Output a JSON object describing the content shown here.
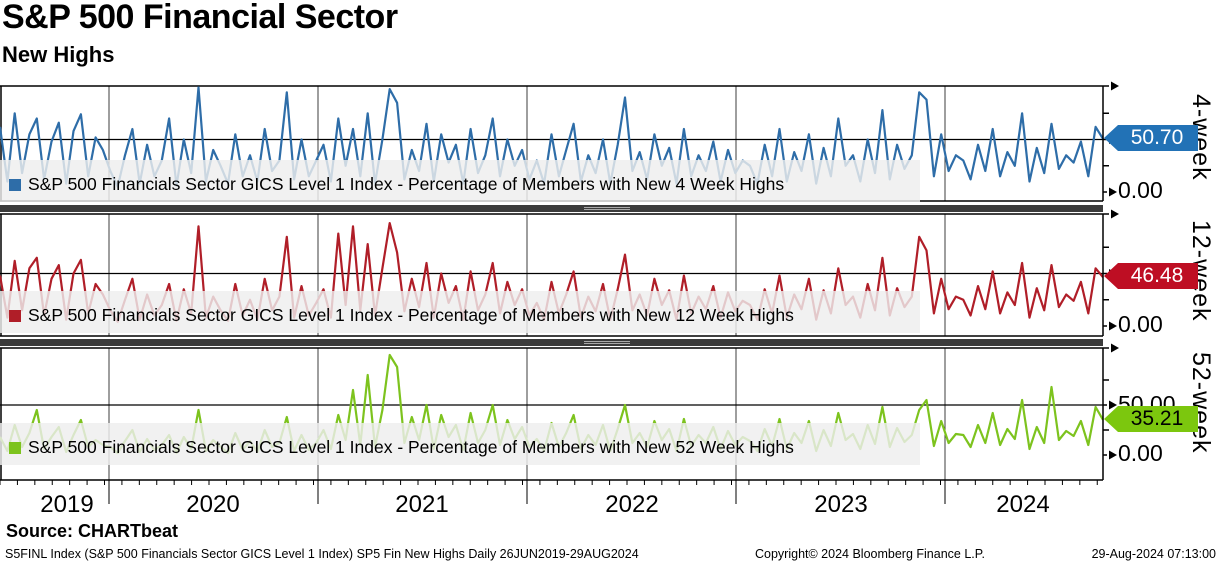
{
  "title": "S&P 500 Financial Sector",
  "subtitle": "New Highs",
  "source_line": "Source: CHARTbeat",
  "footer": {
    "left": "S5FINL Index (S&P 500 Financials Sector GICS Level 1 Index) SP5 Fin New Highs  Daily 26JUN2019-29AUG2024",
    "center": "Copyright© 2024 Bloomberg Finance L.P.",
    "right": "29-Aug-2024 07:13:00"
  },
  "x_axis": {
    "years": [
      "2019",
      "2020",
      "2021",
      "2022",
      "2023",
      "2024"
    ]
  },
  "panels": [
    {
      "label": "4-week",
      "legend": "S&P 500 Financials Sector GICS Level 1 Index - Percentage of Members with New 4 Week Highs",
      "color": "#2E6DA8",
      "tag_color": "#2272B6",
      "last_value": "50.70",
      "zero_label": "0.00"
    },
    {
      "label": "12-week",
      "legend": "S&P 500 Financials Sector GICS Level 1 Index - Percentage of Members with New 12 Week Highs",
      "color": "#B01E28",
      "tag_color": "#BE0E23",
      "last_value": "46.48",
      "zero_label": "0.00"
    },
    {
      "label": "52-week",
      "legend": "S&P 500 Financials Sector GICS Level 1 Index - Percentage of Members with New 52 Week Highs",
      "color": "#7DC31E",
      "tag_color": "#7CC70E",
      "last_value": "35.21",
      "fifty_label": "50.00",
      "zero_label": "0.00"
    }
  ],
  "chart_data": [
    {
      "type": "line",
      "name": "S&P 500 Financials Sector GICS Level 1 Index - Percentage of Members with New 4 Week Highs",
      "x_range": "26JUN2019-29AUG2024",
      "frequency": "Daily",
      "ylim": [
        0,
        100
      ],
      "last_value": 50.7,
      "color": "#2E6DA8",
      "values": [
        62,
        10,
        75,
        18,
        55,
        70,
        12,
        48,
        66,
        8,
        58,
        74,
        15,
        52,
        40,
        20,
        5,
        35,
        60,
        8,
        45,
        15,
        30,
        70,
        6,
        50,
        18,
        100,
        10,
        40,
        25,
        8,
        55,
        15,
        35,
        10,
        60,
        20,
        30,
        95,
        12,
        50,
        15,
        30,
        45,
        10,
        70,
        25,
        60,
        15,
        75,
        8,
        50,
        98,
        85,
        12,
        40,
        20,
        65,
        10,
        55,
        28,
        45,
        8,
        60,
        18,
        35,
        70,
        15,
        50,
        25,
        40,
        12,
        30,
        8,
        55,
        15,
        40,
        65,
        10,
        35,
        18,
        50,
        8,
        45,
        90,
        20,
        38,
        12,
        55,
        25,
        42,
        8,
        60,
        15,
        35,
        20,
        48,
        10,
        40,
        18,
        30,
        25,
        8,
        45,
        15,
        60,
        10,
        38,
        20,
        55,
        8,
        42,
        15,
        70,
        25,
        35,
        10,
        50,
        18,
        78,
        12,
        45,
        22,
        35,
        95,
        88,
        15,
        55,
        20,
        35,
        30,
        12,
        45,
        20,
        60,
        15,
        38,
        25,
        75,
        10,
        42,
        18,
        65,
        22,
        35,
        28,
        48,
        15,
        62,
        50.7
      ]
    },
    {
      "type": "line",
      "name": "S&P 500 Financials Sector GICS Level 1 Index - Percentage of Members with New 12 Week Highs",
      "x_range": "26JUN2019-29AUG2024",
      "frequency": "Daily",
      "ylim": [
        0,
        100
      ],
      "last_value": 46.48,
      "color": "#B01E28",
      "values": [
        48,
        8,
        62,
        15,
        55,
        65,
        10,
        45,
        58,
        6,
        50,
        63,
        12,
        40,
        30,
        15,
        4,
        25,
        45,
        6,
        30,
        10,
        20,
        40,
        5,
        35,
        12,
        95,
        8,
        28,
        15,
        5,
        40,
        10,
        25,
        6,
        45,
        15,
        28,
        85,
        8,
        38,
        10,
        22,
        35,
        8,
        88,
        20,
        95,
        15,
        78,
        10,
        55,
        98,
        70,
        14,
        45,
        18,
        60,
        8,
        50,
        22,
        38,
        6,
        52,
        15,
        30,
        60,
        12,
        42,
        20,
        35,
        10,
        22,
        6,
        42,
        12,
        30,
        52,
        8,
        28,
        14,
        40,
        6,
        35,
        68,
        15,
        30,
        10,
        45,
        20,
        34,
        6,
        48,
        12,
        28,
        16,
        38,
        8,
        32,
        14,
        24,
        20,
        6,
        35,
        12,
        48,
        8,
        30,
        16,
        45,
        6,
        34,
        12,
        55,
        20,
        28,
        8,
        40,
        15,
        65,
        10,
        36,
        18,
        28,
        85,
        72,
        12,
        45,
        16,
        28,
        25,
        10,
        38,
        16,
        52,
        12,
        32,
        20,
        60,
        8,
        36,
        15,
        58,
        18,
        30,
        24,
        42,
        12,
        55,
        46.48
      ]
    },
    {
      "type": "line",
      "name": "S&P 500 Financials Sector GICS Level 1 Index - Percentage of Members with New 52 Week Highs",
      "x_range": "26JUN2019-29AUG2024",
      "frequency": "Daily",
      "ylim": [
        0,
        110
      ],
      "last_value": 35.21,
      "color": "#7DC31E",
      "values": [
        18,
        4,
        30,
        8,
        22,
        45,
        6,
        18,
        28,
        3,
        20,
        35,
        8,
        15,
        10,
        8,
        2,
        14,
        25,
        3,
        16,
        5,
        10,
        20,
        2,
        18,
        6,
        45,
        4,
        15,
        8,
        2,
        22,
        5,
        14,
        3,
        25,
        8,
        12,
        38,
        4,
        20,
        5,
        12,
        25,
        6,
        40,
        15,
        65,
        10,
        80,
        8,
        45,
        100,
        88,
        12,
        38,
        15,
        50,
        6,
        40,
        18,
        30,
        5,
        42,
        12,
        25,
        50,
        10,
        35,
        16,
        28,
        8,
        16,
        4,
        32,
        8,
        22,
        40,
        6,
        20,
        10,
        30,
        4,
        26,
        50,
        12,
        22,
        8,
        34,
        15,
        26,
        4,
        36,
        9,
        20,
        12,
        28,
        6,
        24,
        10,
        18,
        14,
        4,
        26,
        9,
        36,
        6,
        22,
        12,
        34,
        4,
        25,
        9,
        42,
        15,
        21,
        6,
        30,
        11,
        48,
        8,
        27,
        13,
        20,
        45,
        55,
        9,
        34,
        12,
        21,
        20,
        8,
        30,
        12,
        42,
        10,
        26,
        16,
        55,
        6,
        28,
        12,
        68,
        15,
        24,
        19,
        34,
        10,
        48,
        35.21
      ]
    }
  ]
}
